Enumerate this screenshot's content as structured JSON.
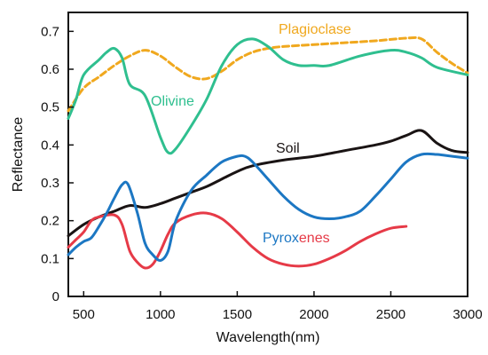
{
  "chart_data": {
    "type": "line",
    "xlabel": "Wavelength(nm)",
    "ylabel": "Reflectance",
    "xlim": [
      400,
      3000
    ],
    "ylim": [
      0,
      0.75
    ],
    "x_ticks": [
      "500",
      "1000",
      "1500",
      "2000",
      "2500",
      "3000"
    ],
    "x_tick_values": [
      500,
      1000,
      1500,
      2000,
      2500,
      3000
    ],
    "y_ticks": [
      "0",
      "0.1",
      "0.2",
      "0.3",
      "0.4",
      "0.5",
      "0.6",
      "0.7"
    ],
    "y_tick_values": [
      0,
      0.1,
      0.2,
      0.3,
      0.4,
      0.5,
      0.6,
      0.7
    ],
    "grid": false,
    "series": [
      {
        "name": "Plagioclase",
        "color": "#f0a81e",
        "dashed": true,
        "points": [
          [
            400,
            0.49
          ],
          [
            500,
            0.55
          ],
          [
            600,
            0.58
          ],
          [
            700,
            0.61
          ],
          [
            800,
            0.635
          ],
          [
            900,
            0.65
          ],
          [
            1000,
            0.635
          ],
          [
            1100,
            0.605
          ],
          [
            1200,
            0.58
          ],
          [
            1300,
            0.575
          ],
          [
            1400,
            0.595
          ],
          [
            1500,
            0.625
          ],
          [
            1600,
            0.645
          ],
          [
            1700,
            0.655
          ],
          [
            1800,
            0.66
          ],
          [
            2000,
            0.665
          ],
          [
            2200,
            0.67
          ],
          [
            2400,
            0.675
          ],
          [
            2600,
            0.682
          ],
          [
            2700,
            0.68
          ],
          [
            2800,
            0.645
          ],
          [
            2900,
            0.615
          ],
          [
            3000,
            0.59
          ]
        ]
      },
      {
        "name": "Olivine",
        "color": "#2fbf8f",
        "dashed": false,
        "points": [
          [
            400,
            0.47
          ],
          [
            450,
            0.52
          ],
          [
            500,
            0.585
          ],
          [
            600,
            0.625
          ],
          [
            650,
            0.645
          ],
          [
            700,
            0.655
          ],
          [
            750,
            0.63
          ],
          [
            800,
            0.56
          ],
          [
            900,
            0.53
          ],
          [
            1000,
            0.42
          ],
          [
            1050,
            0.38
          ],
          [
            1100,
            0.39
          ],
          [
            1200,
            0.45
          ],
          [
            1300,
            0.52
          ],
          [
            1400,
            0.61
          ],
          [
            1500,
            0.665
          ],
          [
            1600,
            0.68
          ],
          [
            1700,
            0.66
          ],
          [
            1800,
            0.625
          ],
          [
            1900,
            0.61
          ],
          [
            2000,
            0.61
          ],
          [
            2100,
            0.61
          ],
          [
            2300,
            0.635
          ],
          [
            2500,
            0.65
          ],
          [
            2600,
            0.645
          ],
          [
            2700,
            0.63
          ],
          [
            2800,
            0.605
          ],
          [
            3000,
            0.585
          ]
        ]
      },
      {
        "name": "Soil",
        "color": "#1a1414",
        "dashed": false,
        "points": [
          [
            400,
            0.16
          ],
          [
            500,
            0.19
          ],
          [
            600,
            0.21
          ],
          [
            700,
            0.225
          ],
          [
            800,
            0.24
          ],
          [
            900,
            0.235
          ],
          [
            1000,
            0.245
          ],
          [
            1100,
            0.26
          ],
          [
            1200,
            0.275
          ],
          [
            1300,
            0.29
          ],
          [
            1400,
            0.31
          ],
          [
            1500,
            0.33
          ],
          [
            1600,
            0.345
          ],
          [
            1800,
            0.36
          ],
          [
            2000,
            0.37
          ],
          [
            2200,
            0.385
          ],
          [
            2400,
            0.4
          ],
          [
            2500,
            0.41
          ],
          [
            2600,
            0.425
          ],
          [
            2700,
            0.438
          ],
          [
            2800,
            0.405
          ],
          [
            2900,
            0.385
          ],
          [
            3000,
            0.38
          ]
        ]
      },
      {
        "name": "Pyroxenes",
        "color": "#e63a47",
        "dashed": false,
        "points": [
          [
            400,
            0.13
          ],
          [
            450,
            0.15
          ],
          [
            500,
            0.17
          ],
          [
            550,
            0.2
          ],
          [
            600,
            0.21
          ],
          [
            700,
            0.215
          ],
          [
            750,
            0.19
          ],
          [
            800,
            0.12
          ],
          [
            850,
            0.09
          ],
          [
            900,
            0.075
          ],
          [
            950,
            0.085
          ],
          [
            1000,
            0.12
          ],
          [
            1050,
            0.165
          ],
          [
            1100,
            0.195
          ],
          [
            1200,
            0.215
          ],
          [
            1300,
            0.22
          ],
          [
            1400,
            0.205
          ],
          [
            1500,
            0.17
          ],
          [
            1600,
            0.13
          ],
          [
            1700,
            0.1
          ],
          [
            1800,
            0.085
          ],
          [
            1900,
            0.08
          ],
          [
            2000,
            0.085
          ],
          [
            2100,
            0.1
          ],
          [
            2200,
            0.12
          ],
          [
            2300,
            0.145
          ],
          [
            2400,
            0.165
          ],
          [
            2500,
            0.18
          ],
          [
            2600,
            0.185
          ]
        ]
      },
      {
        "name": "Pyroxenes (blue)",
        "color": "#1c77c3",
        "dashed": false,
        "points": [
          [
            400,
            0.11
          ],
          [
            450,
            0.13
          ],
          [
            500,
            0.145
          ],
          [
            550,
            0.155
          ],
          [
            600,
            0.185
          ],
          [
            650,
            0.22
          ],
          [
            700,
            0.26
          ],
          [
            750,
            0.295
          ],
          [
            790,
            0.295
          ],
          [
            850,
            0.22
          ],
          [
            900,
            0.14
          ],
          [
            950,
            0.11
          ],
          [
            1000,
            0.095
          ],
          [
            1050,
            0.12
          ],
          [
            1100,
            0.2
          ],
          [
            1200,
            0.28
          ],
          [
            1300,
            0.32
          ],
          [
            1400,
            0.355
          ],
          [
            1500,
            0.37
          ],
          [
            1550,
            0.37
          ],
          [
            1600,
            0.355
          ],
          [
            1700,
            0.31
          ],
          [
            1800,
            0.265
          ],
          [
            1900,
            0.23
          ],
          [
            2000,
            0.21
          ],
          [
            2100,
            0.205
          ],
          [
            2200,
            0.21
          ],
          [
            2300,
            0.225
          ],
          [
            2400,
            0.265
          ],
          [
            2500,
            0.31
          ],
          [
            2600,
            0.355
          ],
          [
            2700,
            0.375
          ],
          [
            2800,
            0.375
          ],
          [
            2900,
            0.37
          ],
          [
            3000,
            0.365
          ]
        ]
      }
    ],
    "labels": {
      "plagioclase": "Plagioclase",
      "olivine": "Olivine",
      "soil": "Soil",
      "pyrox_part1": "Pyrox",
      "pyrox_part2": "enes"
    }
  }
}
